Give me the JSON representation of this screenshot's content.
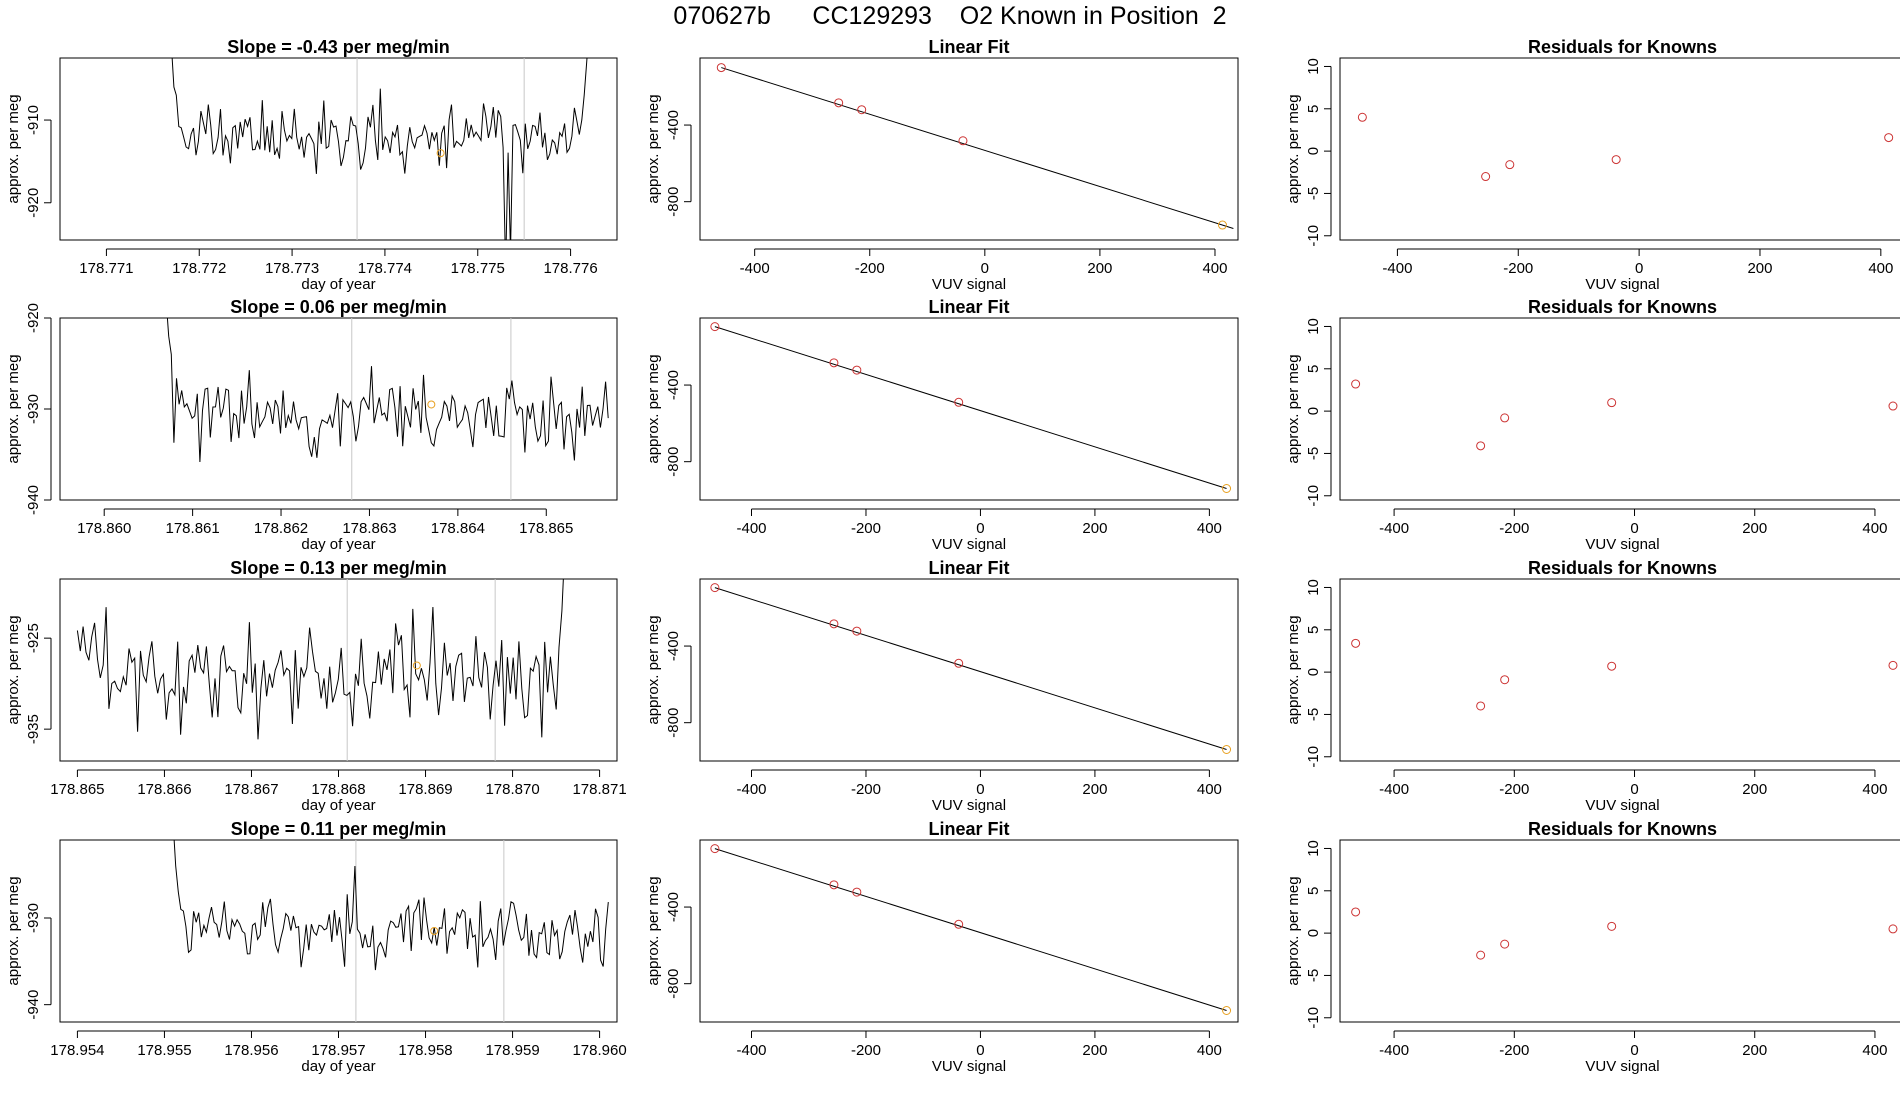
{
  "figure_title": "070627b      CC129293    O2 Known in Position  2",
  "colors": {
    "line": "#000000",
    "point": "#cc3333",
    "highlight": "#e8a020",
    "vline": "#c8c8c8"
  },
  "chart_data": [
    {
      "type": "line",
      "row": 1,
      "title": "Slope =  -0.43  per meg/min",
      "xlabel": "day of year",
      "ylabel": "approx. per meg",
      "xlim": [
        178.7705,
        178.7765
      ],
      "ylim": [
        -924.5,
        -902.5
      ],
      "xticks": [
        178.771,
        178.772,
        178.773,
        178.774,
        178.775,
        178.776
      ],
      "xtick_labels": [
        "178.771",
        "178.772",
        "178.773",
        "178.774",
        "178.775",
        "178.776"
      ],
      "yticks": [
        -920,
        -910
      ],
      "ytick_labels": [
        "-920",
        "-910"
      ],
      "series_x_range": [
        178.7717,
        178.7762
      ],
      "series_mean": -912,
      "series_noise": 2.0,
      "series_seed": 11,
      "start_values": [
        -901,
        -906,
        -907
      ],
      "end_values": [
        -910,
        -907,
        -903,
        -899
      ],
      "spikes": [
        {
          "x": 178.7753,
          "y": -928
        },
        {
          "x": 178.77535,
          "y": -926
        }
      ],
      "vlines": [
        178.7737,
        178.7755
      ],
      "highlight": {
        "x": 178.7746,
        "y": -914
      }
    },
    {
      "type": "line",
      "row": 2,
      "title": "Slope =  0.06  per meg/min",
      "xlabel": "day of year",
      "ylabel": "approx. per meg",
      "xlim": [
        178.8595,
        178.8658
      ],
      "ylim": [
        -940,
        -920
      ],
      "xticks": [
        178.86,
        178.861,
        178.862,
        178.863,
        178.864,
        178.865
      ],
      "xtick_labels": [
        "178.860",
        "178.861",
        "178.862",
        "178.863",
        "178.864",
        "178.865"
      ],
      "yticks": [
        -940,
        -930,
        -920
      ],
      "ytick_labels": [
        "-940",
        "-930",
        "-920"
      ],
      "series_x_range": [
        178.8607,
        178.8657
      ],
      "series_mean": -930.5,
      "series_noise": 2.2,
      "series_seed": 23,
      "start_values": [
        -918,
        -922,
        -924
      ],
      "end_values": [
        -930,
        -927,
        -931
      ],
      "spikes": [],
      "vlines": [
        178.8628,
        178.8646
      ],
      "highlight": {
        "x": 178.8637,
        "y": -929.5
      }
    },
    {
      "type": "line",
      "row": 3,
      "title": "Slope =  0.13  per meg/min",
      "xlabel": "day of year",
      "ylabel": "approx. per meg",
      "xlim": [
        178.8648,
        178.8712
      ],
      "ylim": [
        -938.5,
        -918.5
      ],
      "xticks": [
        178.865,
        178.866,
        178.867,
        178.868,
        178.869,
        178.87,
        178.871
      ],
      "xtick_labels": [
        "178.865",
        "178.866",
        "178.867",
        "178.868",
        "178.869",
        "178.870",
        "178.871"
      ],
      "yticks": [
        -935,
        -925
      ],
      "ytick_labels": [
        "-935",
        "-925"
      ],
      "series_x_range": [
        178.865,
        178.8706
      ],
      "series_mean": -929,
      "series_noise": 3.0,
      "series_seed": 37,
      "start_values": [],
      "end_values": [
        -926,
        -922,
        -915
      ],
      "spikes": [],
      "vlines": [
        178.8681,
        178.8698
      ],
      "highlight": {
        "x": 178.8689,
        "y": -928
      }
    },
    {
      "type": "line",
      "row": 4,
      "title": "Slope =  0.11  per meg/min",
      "xlabel": "day of year",
      "ylabel": "approx. per meg",
      "xlim": [
        178.9538,
        178.9602
      ],
      "ylim": [
        -942,
        -921
      ],
      "xticks": [
        178.954,
        178.955,
        178.956,
        178.957,
        178.958,
        178.959,
        178.96
      ],
      "xtick_labels": [
        "178.954",
        "178.955",
        "178.956",
        "178.957",
        "178.958",
        "178.959",
        "178.960"
      ],
      "yticks": [
        -940,
        -930
      ],
      "ytick_labels": [
        "-940",
        "-930"
      ],
      "series_x_range": [
        178.9551,
        178.9601
      ],
      "series_mean": -931.5,
      "series_noise": 1.8,
      "series_seed": 51,
      "start_values": [
        -919,
        -924,
        -927,
        -929
      ],
      "end_values": [],
      "spikes": [
        {
          "x": 178.9572,
          "y": -924
        }
      ],
      "vlines": [
        178.9572,
        178.9589
      ],
      "highlight": {
        "x": 178.9581,
        "y": -931.5
      }
    },
    {
      "type": "scatter",
      "row": 1,
      "title": "Linear Fit",
      "xlabel": "VUV signal",
      "ylabel": "approx. per meg",
      "xlim": [
        -495,
        440
      ],
      "ylim": [
        -1000,
        -50
      ],
      "xticks": [
        -400,
        -200,
        0,
        200,
        400
      ],
      "xtick_labels": [
        "-400",
        "-200",
        "0",
        "200",
        "400"
      ],
      "yticks": [
        -800,
        -400
      ],
      "ytick_labels": [
        "-800",
        "-400"
      ],
      "points": [
        {
          "x": -458,
          "y": -100
        },
        {
          "x": -254,
          "y": -284
        },
        {
          "x": -214,
          "y": -320
        },
        {
          "x": -38,
          "y": -482
        },
        {
          "x": 413,
          "y": -922
        }
      ],
      "highlight_index": 4,
      "fit_line": {
        "x": [
          -458,
          432
        ],
        "y": [
          -100,
          -940
        ]
      }
    },
    {
      "type": "scatter",
      "row": 2,
      "title": "Linear Fit",
      "xlabel": "VUV signal",
      "ylabel": "approx. per meg",
      "xlim": [
        -490,
        450
      ],
      "ylim": [
        -1000,
        -50
      ],
      "xticks": [
        -400,
        -200,
        0,
        200,
        400
      ],
      "xtick_labels": [
        "-400",
        "-200",
        "0",
        "200",
        "400"
      ],
      "yticks": [
        -800,
        -400
      ],
      "ytick_labels": [
        "-800",
        "-400"
      ],
      "points": [
        {
          "x": -464,
          "y": -95
        },
        {
          "x": -256,
          "y": -284
        },
        {
          "x": -216,
          "y": -322
        },
        {
          "x": -38,
          "y": -490
        },
        {
          "x": 430,
          "y": -940
        }
      ],
      "highlight_index": 4,
      "fit_line": {
        "x": [
          -464,
          430
        ],
        "y": [
          -95,
          -940
        ]
      }
    },
    {
      "type": "scatter",
      "row": 3,
      "title": "Linear Fit",
      "xlabel": "VUV signal",
      "ylabel": "approx. per meg",
      "xlim": [
        -490,
        450
      ],
      "ylim": [
        -1000,
        -50
      ],
      "xticks": [
        -400,
        -200,
        0,
        200,
        400
      ],
      "xtick_labels": [
        "-400",
        "-200",
        "0",
        "200",
        "400"
      ],
      "yticks": [
        -800,
        -400
      ],
      "ytick_labels": [
        "-800",
        "-400"
      ],
      "points": [
        {
          "x": -464,
          "y": -95
        },
        {
          "x": -256,
          "y": -284
        },
        {
          "x": -216,
          "y": -322
        },
        {
          "x": -38,
          "y": -490
        },
        {
          "x": 430,
          "y": -940
        }
      ],
      "highlight_index": 4,
      "fit_line": {
        "x": [
          -464,
          430
        ],
        "y": [
          -95,
          -940
        ]
      }
    },
    {
      "type": "scatter",
      "row": 4,
      "title": "Linear Fit",
      "xlabel": "VUV signal",
      "ylabel": "approx. per meg",
      "xlim": [
        -490,
        450
      ],
      "ylim": [
        -1000,
        -50
      ],
      "xticks": [
        -400,
        -200,
        0,
        200,
        400
      ],
      "xtick_labels": [
        "-400",
        "-200",
        "0",
        "200",
        "400"
      ],
      "yticks": [
        -800,
        -400
      ],
      "ytick_labels": [
        "-800",
        "-400"
      ],
      "points": [
        {
          "x": -464,
          "y": -95
        },
        {
          "x": -256,
          "y": -284
        },
        {
          "x": -216,
          "y": -322
        },
        {
          "x": -38,
          "y": -490
        },
        {
          "x": 430,
          "y": -940
        }
      ],
      "highlight_index": 4,
      "fit_line": {
        "x": [
          -464,
          430
        ],
        "y": [
          -95,
          -940
        ]
      }
    },
    {
      "type": "scatter",
      "row": 1,
      "title": "Residuals for Knowns",
      "xlabel": "VUV signal",
      "ylabel": "approx. per meg",
      "xlim": [
        -495,
        440
      ],
      "ylim": [
        -10.5,
        11
      ],
      "xticks": [
        -400,
        -200,
        0,
        200,
        400
      ],
      "xtick_labels": [
        "-400",
        "-200",
        "0",
        "200",
        "400"
      ],
      "yticks": [
        -10,
        -5,
        0,
        5,
        10
      ],
      "ytick_labels": [
        "-10",
        "-5",
        "0",
        "5",
        "10"
      ],
      "points": [
        {
          "x": -458,
          "y": 4.0
        },
        {
          "x": -254,
          "y": -3.0
        },
        {
          "x": -214,
          "y": -1.6
        },
        {
          "x": -38,
          "y": -1.0
        },
        {
          "x": 413,
          "y": 1.6
        }
      ]
    },
    {
      "type": "scatter",
      "row": 2,
      "title": "Residuals for Knowns",
      "xlabel": "VUV signal",
      "ylabel": "approx. per meg",
      "xlim": [
        -490,
        450
      ],
      "ylim": [
        -10.5,
        11
      ],
      "xticks": [
        -400,
        -200,
        0,
        200,
        400
      ],
      "xtick_labels": [
        "-400",
        "-200",
        "0",
        "200",
        "400"
      ],
      "yticks": [
        -10,
        -5,
        0,
        5,
        10
      ],
      "ytick_labels": [
        "-10",
        "-5",
        "0",
        "5",
        "10"
      ],
      "points": [
        {
          "x": -464,
          "y": 3.2
        },
        {
          "x": -256,
          "y": -4.1
        },
        {
          "x": -216,
          "y": -0.8
        },
        {
          "x": -38,
          "y": 1.0
        },
        {
          "x": 430,
          "y": 0.6
        }
      ]
    },
    {
      "type": "scatter",
      "row": 3,
      "title": "Residuals for Knowns",
      "xlabel": "VUV signal",
      "ylabel": "approx. per meg",
      "xlim": [
        -490,
        450
      ],
      "ylim": [
        -10.5,
        11
      ],
      "xticks": [
        -400,
        -200,
        0,
        200,
        400
      ],
      "xtick_labels": [
        "-400",
        "-200",
        "0",
        "200",
        "400"
      ],
      "yticks": [
        -10,
        -5,
        0,
        5,
        10
      ],
      "ytick_labels": [
        "-10",
        "-5",
        "0",
        "5",
        "10"
      ],
      "points": [
        {
          "x": -464,
          "y": 3.4
        },
        {
          "x": -256,
          "y": -4.0
        },
        {
          "x": -216,
          "y": -0.9
        },
        {
          "x": -38,
          "y": 0.7
        },
        {
          "x": 430,
          "y": 0.8
        }
      ]
    },
    {
      "type": "scatter",
      "row": 4,
      "title": "Residuals for Knowns",
      "xlabel": "VUV signal",
      "ylabel": "approx. per meg",
      "xlim": [
        -490,
        450
      ],
      "ylim": [
        -10.5,
        11
      ],
      "xticks": [
        -400,
        -200,
        0,
        200,
        400
      ],
      "xtick_labels": [
        "-400",
        "-200",
        "0",
        "200",
        "400"
      ],
      "yticks": [
        -10,
        -5,
        0,
        5,
        10
      ],
      "ytick_labels": [
        "-10",
        "-5",
        "0",
        "5",
        "10"
      ],
      "points": [
        {
          "x": -464,
          "y": 2.5
        },
        {
          "x": -256,
          "y": -2.6
        },
        {
          "x": -216,
          "y": -1.3
        },
        {
          "x": -38,
          "y": 0.8
        },
        {
          "x": 430,
          "y": 0.5
        }
      ]
    }
  ]
}
